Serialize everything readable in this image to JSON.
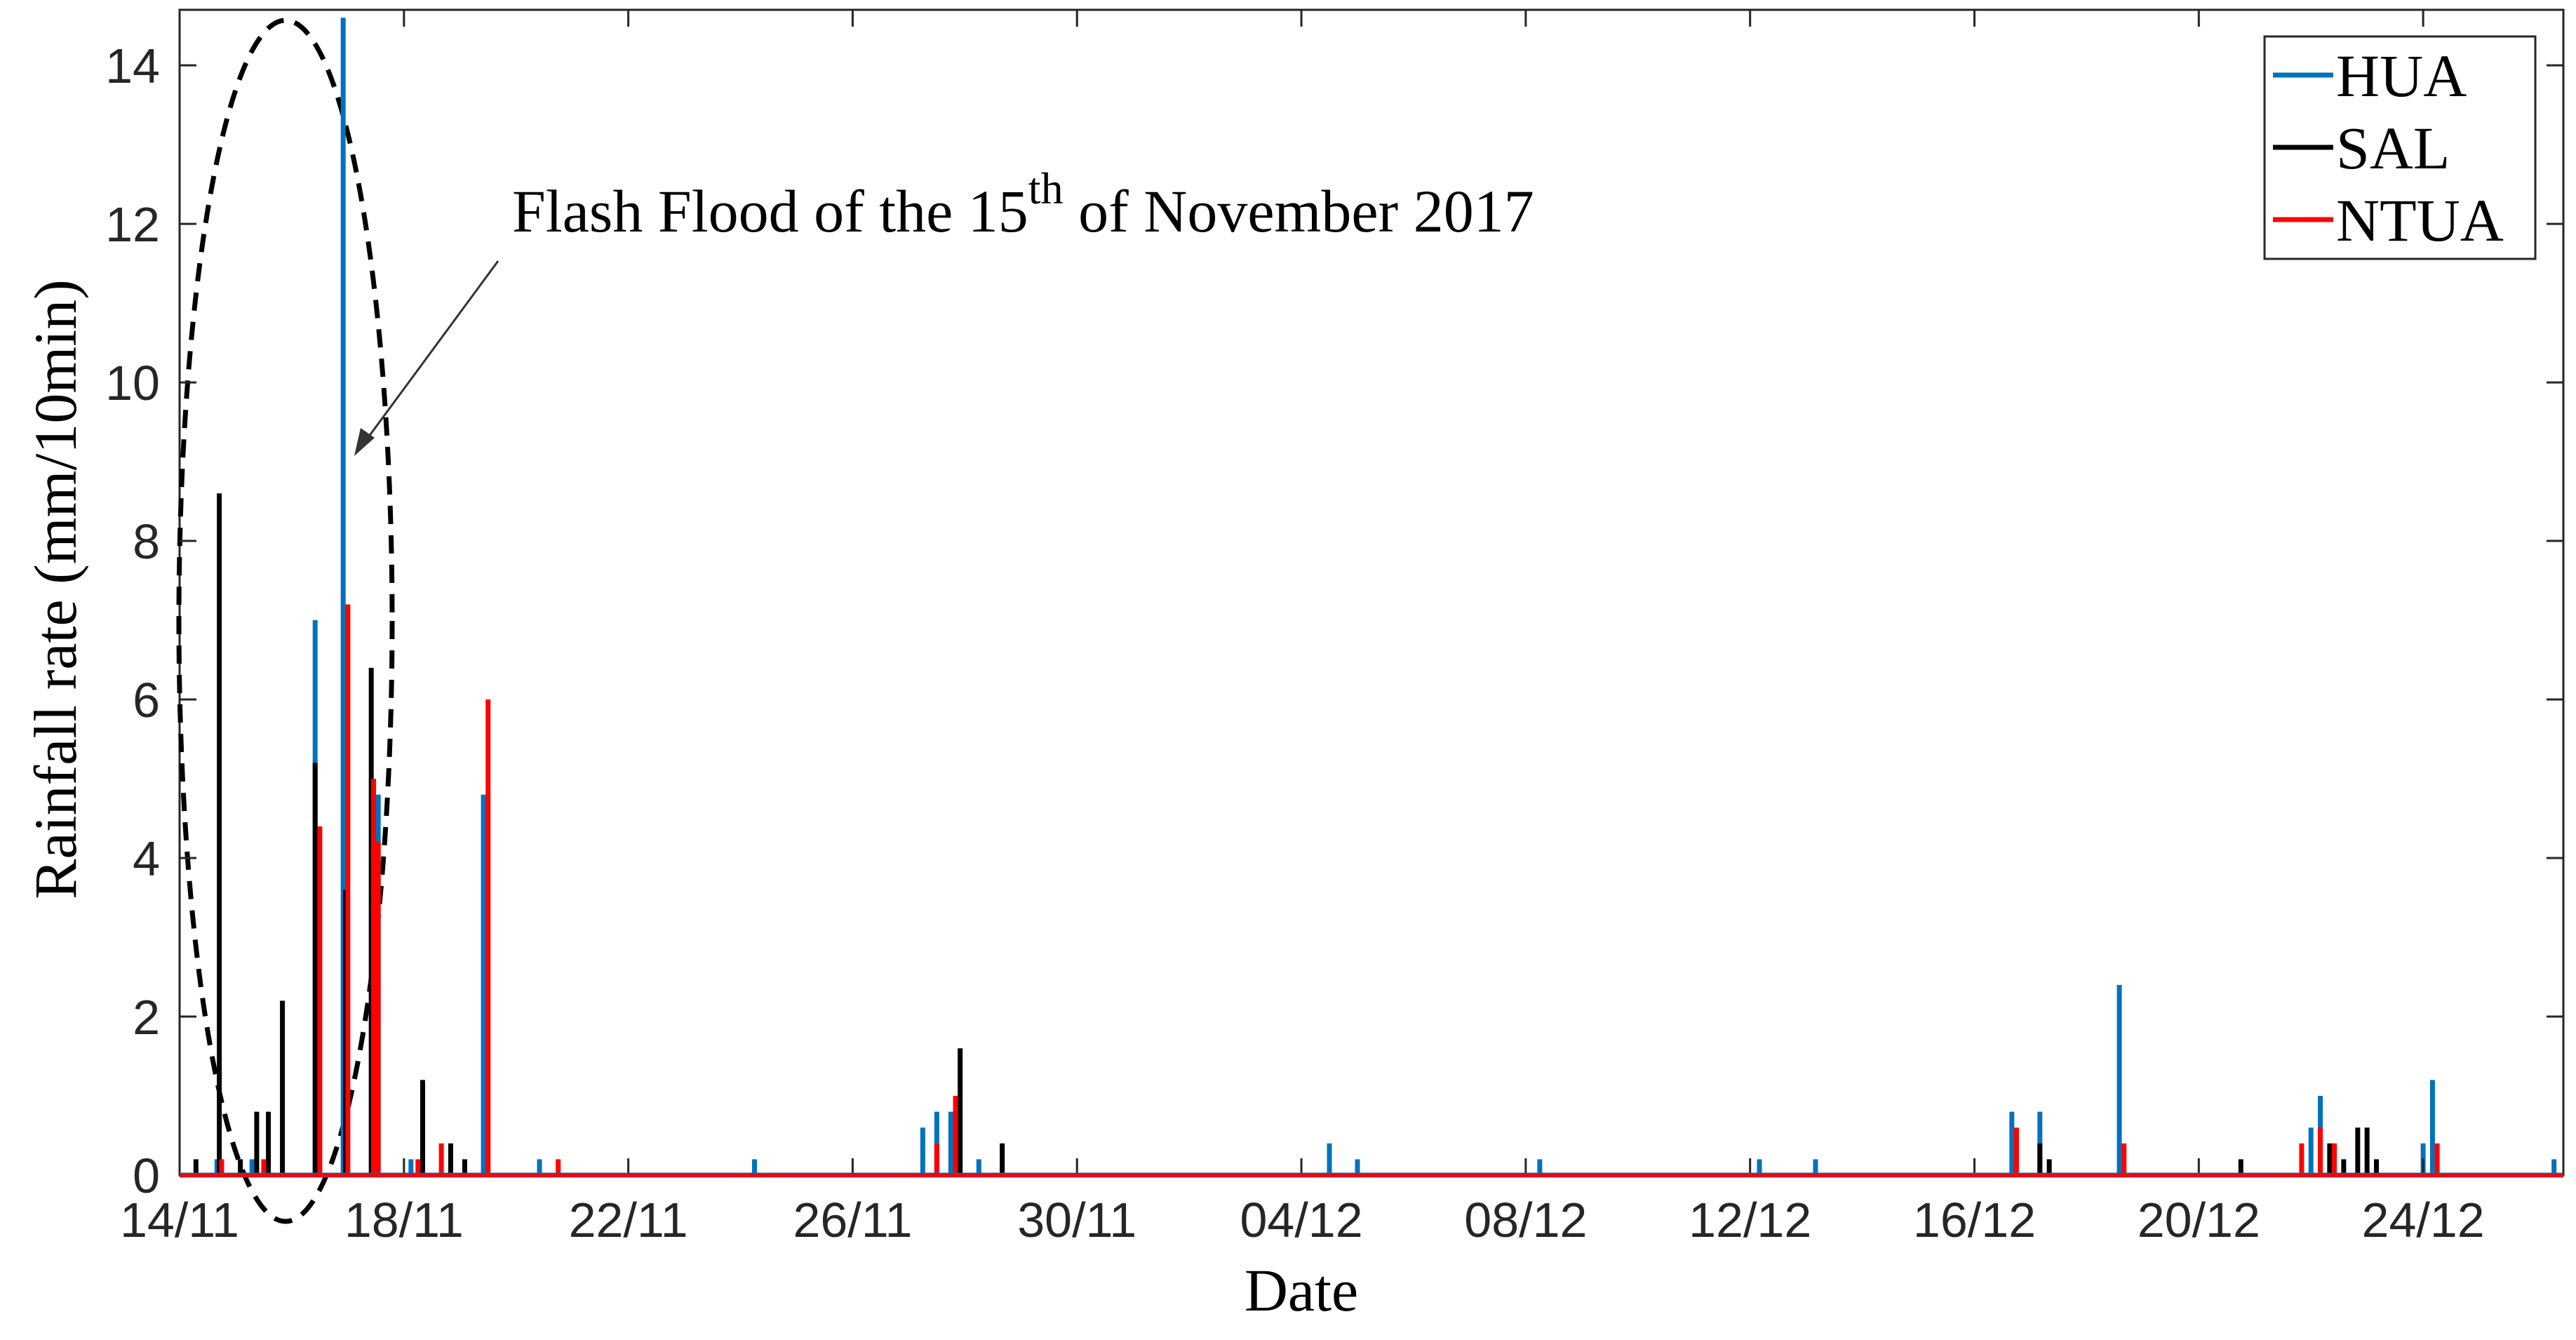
{
  "chart_data": {
    "type": "bar",
    "xlabel": "Date",
    "ylabel": "Rainfall rate (mm/10min)",
    "ylim": [
      0,
      14.7
    ],
    "xlim": [
      "2017-11-14",
      "2017-12-26T12:00"
    ],
    "x_ticks": [
      "14/11",
      "18/11",
      "22/11",
      "26/11",
      "30/11",
      "04/12",
      "08/12",
      "12/12",
      "16/12",
      "20/12",
      "24/12"
    ],
    "x_tick_dates": [
      "2017-11-14",
      "2017-11-18",
      "2017-11-22",
      "2017-11-26",
      "2017-11-30",
      "2017-12-04",
      "2017-12-08",
      "2017-12-12",
      "2017-12-16",
      "2017-12-20",
      "2017-12-24"
    ],
    "y_ticks": [
      0,
      2,
      4,
      6,
      8,
      10,
      12,
      14
    ],
    "grid": false,
    "legend_position": "top-right",
    "annotation": {
      "text_before": "Flash Flood of the 15",
      "superscript": "th",
      "text_after": " of November 2017",
      "points_to": [
        "2017-11-17T03:00",
        9.1
      ]
    },
    "series": [
      {
        "name": "HUA",
        "color": "#0072BD",
        "points": [
          [
            "2017-11-14T16:00",
            0.2
          ],
          [
            "2017-11-15T07:00",
            0.2
          ],
          [
            "2017-11-16T10:00",
            7.0
          ],
          [
            "2017-11-16T22:00",
            14.6
          ],
          [
            "2017-11-17T13:00",
            4.8
          ],
          [
            "2017-11-18T03:00",
            0.2
          ],
          [
            "2017-11-19T10:00",
            4.8
          ],
          [
            "2017-11-20T10:00",
            0.2
          ],
          [
            "2017-11-24T06:00",
            0.2
          ],
          [
            "2017-11-27T06:00",
            0.6
          ],
          [
            "2017-11-27T12:00",
            0.8
          ],
          [
            "2017-11-27T18:00",
            0.8
          ],
          [
            "2017-11-28T06:00",
            0.2
          ],
          [
            "2017-12-04T12:00",
            0.4
          ],
          [
            "2017-12-05T00:00",
            0.2
          ],
          [
            "2017-12-08T06:00",
            0.2
          ],
          [
            "2017-12-12T04:00",
            0.2
          ],
          [
            "2017-12-13T04:00",
            0.2
          ],
          [
            "2017-12-16T16:00",
            0.8
          ],
          [
            "2017-12-17T04:00",
            0.8
          ],
          [
            "2017-12-18T14:00",
            2.4
          ],
          [
            "2017-12-22T00:00",
            0.6
          ],
          [
            "2017-12-22T04:00",
            1.0
          ],
          [
            "2017-12-24T00:00",
            0.4
          ],
          [
            "2017-12-24T04:00",
            1.2
          ],
          [
            "2017-12-26T08:00",
            0.2
          ]
        ]
      },
      {
        "name": "SAL",
        "color": "#000000",
        "points": [
          [
            "2017-11-14T07:00",
            0.2
          ],
          [
            "2017-11-14T17:00",
            8.6
          ],
          [
            "2017-11-15T02:00",
            0.2
          ],
          [
            "2017-11-15T09:00",
            0.8
          ],
          [
            "2017-11-15T14:00",
            0.8
          ],
          [
            "2017-11-15T20:00",
            2.2
          ],
          [
            "2017-11-16T10:00",
            5.2
          ],
          [
            "2017-11-16T23:00",
            3.6
          ],
          [
            "2017-11-17T10:00",
            6.4
          ],
          [
            "2017-11-18T08:00",
            1.2
          ],
          [
            "2017-11-18T20:00",
            0.4
          ],
          [
            "2017-11-19T02:00",
            0.2
          ],
          [
            "2017-11-27T22:00",
            1.6
          ],
          [
            "2017-11-28T16:00",
            0.4
          ],
          [
            "2017-12-17T04:00",
            0.4
          ],
          [
            "2017-12-17T08:00",
            0.2
          ],
          [
            "2017-12-20T18:00",
            0.2
          ],
          [
            "2017-12-22T08:00",
            0.4
          ],
          [
            "2017-12-22T14:00",
            0.2
          ],
          [
            "2017-12-22T20:00",
            0.6
          ],
          [
            "2017-12-23T00:00",
            0.6
          ],
          [
            "2017-12-23T04:00",
            0.2
          ]
        ]
      },
      {
        "name": "NTUA",
        "color": "#FF0000",
        "points": [
          [
            "2017-11-14T18:00",
            0.2
          ],
          [
            "2017-11-15T12:00",
            0.2
          ],
          [
            "2017-11-16T12:00",
            4.4
          ],
          [
            "2017-11-17T00:00",
            7.2
          ],
          [
            "2017-11-17T11:00",
            5.0
          ],
          [
            "2017-11-17T13:00",
            4.2
          ],
          [
            "2017-11-18T06:00",
            0.2
          ],
          [
            "2017-11-18T16:00",
            0.4
          ],
          [
            "2017-11-19T12:00",
            6.0
          ],
          [
            "2017-11-20T18:00",
            0.2
          ],
          [
            "2017-11-27T12:00",
            0.4
          ],
          [
            "2017-11-27T20:00",
            1.0
          ],
          [
            "2017-12-16T18:00",
            0.6
          ],
          [
            "2017-12-18T16:00",
            0.4
          ],
          [
            "2017-12-21T20:00",
            0.4
          ],
          [
            "2017-12-22T04:00",
            0.6
          ],
          [
            "2017-12-22T10:00",
            0.4
          ],
          [
            "2017-12-24T06:00",
            0.4
          ]
        ]
      }
    ]
  }
}
